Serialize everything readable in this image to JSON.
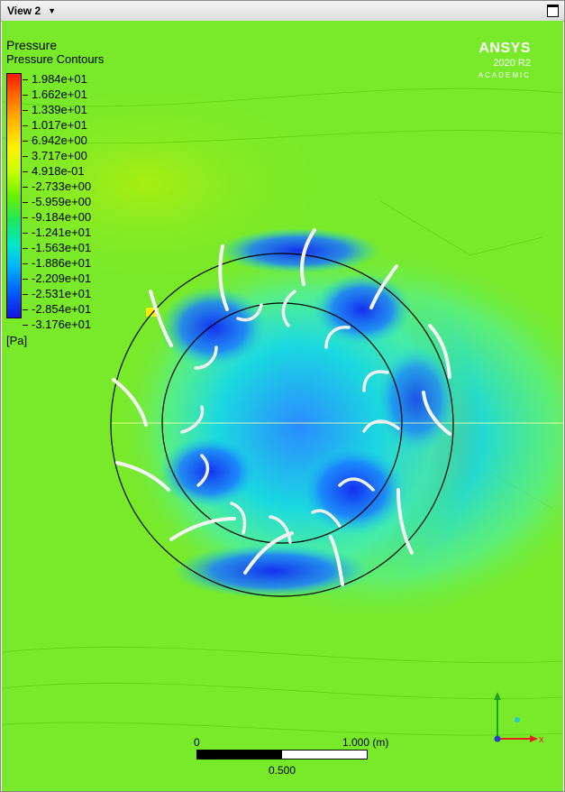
{
  "window": {
    "view_title": "View 2",
    "dropdown_icon": "caret-down-icon",
    "maximize_icon": "maximize-icon"
  },
  "legend": {
    "title": "Pressure",
    "subtitle": "Pressure Contours",
    "unit": "[Pa]",
    "values": [
      "1.984e+01",
      "1.662e+01",
      "1.339e+01",
      "1.017e+01",
      "6.942e+00",
      "3.717e+00",
      "4.918e-01",
      "-2.733e+00",
      "-5.959e+00",
      "-9.184e+00",
      "-1.241e+01",
      "-1.563e+01",
      "-1.886e+01",
      "-2.209e+01",
      "-2.531e+01",
      "-2.854e+01",
      "-3.176e+01"
    ],
    "colors": [
      "#ff1a00",
      "#ff6a00",
      "#ffb400",
      "#fff000",
      "#c8ff00",
      "#6cf000",
      "#1fe85a",
      "#00e8c8",
      "#00b4ff",
      "#0064ff",
      "#1414e0"
    ]
  },
  "logo": {
    "name": "ANSYS",
    "version": "2020 R2",
    "edition": "ACADEMIC"
  },
  "scale_bar": {
    "start_label": "0",
    "end_label": "1.000  (m)",
    "mid_label": "0.500"
  },
  "axes_triad": {
    "x_label": "x",
    "x_color": "#e8201a",
    "y_color": "#20a020",
    "z_color": "#2040d0"
  },
  "colors": {
    "background_field": "#78ea2a",
    "low_pressure": "#1a3cff",
    "mid_pressure": "#22e8d8"
  }
}
